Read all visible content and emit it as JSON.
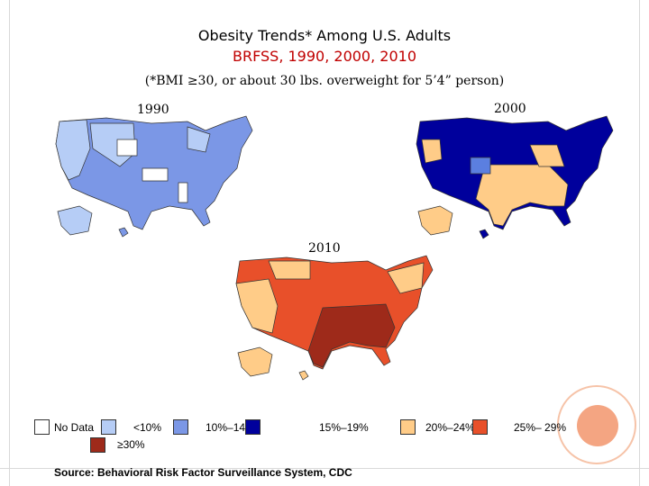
{
  "title": "Obesity Trends* Among U.S. Adults",
  "subtitle": "BRFSS, 1990, 2000, 2010",
  "note": "(*BMI ≥30, or about 30 lbs. overweight for 5’4” person)",
  "maps": [
    {
      "year": "1990",
      "mainland_color": "#7b97e6",
      "accent_color": "#b6cdf6",
      "nodata_color": "#ffffff"
    },
    {
      "year": "2000",
      "mainland_color": "#00009c",
      "accent_color": "#ffcc88",
      "extra_color": "#5b7fe0"
    },
    {
      "year": "2010",
      "mainland_color": "#e8502a",
      "accent_color": "#ffcc88",
      "dark_color": "#9e2a1a"
    }
  ],
  "legend": {
    "items": [
      {
        "label": "No Data",
        "color": "#ffffff"
      },
      {
        "label": "<10%",
        "color": "#b6cdf6"
      },
      {
        "label": "10%–14%",
        "color": "#7b97e6"
      },
      {
        "label": "15%–19%",
        "color": "#00009c"
      },
      {
        "label": "20%–24%",
        "color": "#ffcc88"
      },
      {
        "label": "25%– 29%",
        "color": "#e8502a"
      },
      {
        "label": "≥30%",
        "color": "#9e2a1a"
      }
    ]
  },
  "source": "Source: Behavioral Risk Factor Surveillance System, CDC"
}
